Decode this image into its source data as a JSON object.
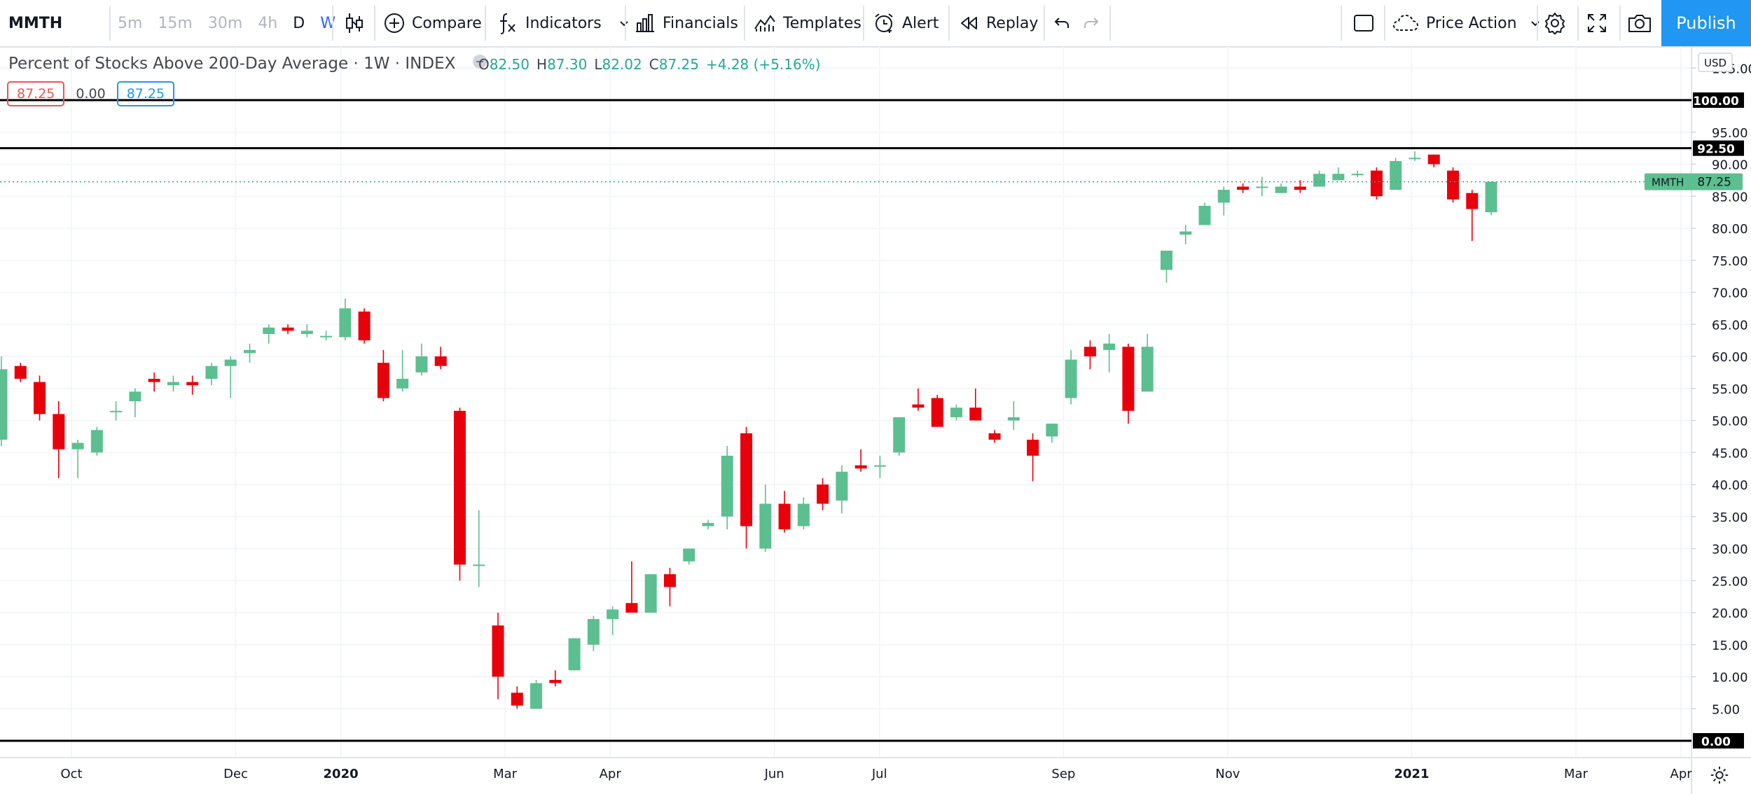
{
  "toolbar": {
    "symbol": "MMTH",
    "intervals": [
      "5m",
      "15m",
      "30m",
      "4h",
      "D",
      "W"
    ],
    "compare": "Compare",
    "indicators": "Indicators",
    "financials": "Financials",
    "templates": "Templates",
    "alert": "Alert",
    "replay": "Replay",
    "layout": "Price Action",
    "publish": "Publish"
  },
  "legend": {
    "title": "Percent of Stocks Above 200-Day Average",
    "interval": "1W",
    "exchange": "INDEX",
    "o_label": "O",
    "o": "82.50",
    "h_label": "H",
    "h": "87.30",
    "l_label": "L",
    "l": "82.02",
    "c_label": "C",
    "c": "87.25",
    "change": "+4.28 (+5.16%)"
  },
  "indicator_legend": {
    "v1": "87.25",
    "v2": "0.00",
    "v3": "87.25"
  },
  "price_scale": {
    "currency": "USD",
    "labels": [
      "105.00",
      "95.00",
      "90.00",
      "85.00",
      "80.00",
      "75.00",
      "70.00",
      "65.00",
      "60.00",
      "55.00",
      "50.00",
      "45.00",
      "40.00",
      "35.00",
      "30.00",
      "25.00",
      "20.00",
      "15.00",
      "10.00",
      "5.00"
    ],
    "hlines": [
      "100.00",
      "92.50",
      "0.00"
    ],
    "last_symbol": "MMTH",
    "last_value": "87.25"
  },
  "time_scale": [
    {
      "label": "Oct",
      "bold": false
    },
    {
      "label": "Dec",
      "bold": false
    },
    {
      "label": "2020",
      "bold": true
    },
    {
      "label": "Mar",
      "bold": false
    },
    {
      "label": "Apr",
      "bold": false
    },
    {
      "label": "Jun",
      "bold": false
    },
    {
      "label": "Jul",
      "bold": false
    },
    {
      "label": "Sep",
      "bold": false
    },
    {
      "label": "Nov",
      "bold": false
    },
    {
      "label": "2021",
      "bold": true
    },
    {
      "label": "Mar",
      "bold": false
    },
    {
      "label": "Apr",
      "bold": false
    }
  ],
  "colors": {
    "up": "#26a69a",
    "up_body": "#5cbf8f",
    "down": "#e8000b",
    "hline": "#000000",
    "accent": "#2196f3"
  },
  "chart_data": {
    "type": "candlestick",
    "ylim": [
      -0.5,
      107.5
    ],
    "hlines": [
      100,
      92.5,
      0
    ],
    "last_price": 87.25,
    "candles": [
      {
        "o": 47,
        "h": 60,
        "l": 46,
        "c": 58
      },
      {
        "o": 58.5,
        "h": 59,
        "l": 56,
        "c": 56.5
      },
      {
        "o": 56,
        "h": 57,
        "l": 50,
        "c": 51
      },
      {
        "o": 51,
        "h": 53,
        "l": 41,
        "c": 45.5
      },
      {
        "o": 45.5,
        "h": 47,
        "l": 41,
        "c": 46.5
      },
      {
        "o": 45,
        "h": 49,
        "l": 44.5,
        "c": 48.5
      },
      {
        "o": 51.5,
        "h": 53,
        "l": 50,
        "c": 51.5
      },
      {
        "o": 53,
        "h": 55,
        "l": 50.5,
        "c": 54.5
      },
      {
        "o": 56.5,
        "h": 57.5,
        "l": 54.5,
        "c": 56
      },
      {
        "o": 55.5,
        "h": 57,
        "l": 54.5,
        "c": 56
      },
      {
        "o": 56,
        "h": 57,
        "l": 54,
        "c": 55.5
      },
      {
        "o": 56.5,
        "h": 59,
        "l": 55.5,
        "c": 58.5
      },
      {
        "o": 58.5,
        "h": 60,
        "l": 53.5,
        "c": 59.5
      },
      {
        "o": 60.5,
        "h": 62,
        "l": 59,
        "c": 61
      },
      {
        "o": 63.5,
        "h": 65,
        "l": 62,
        "c": 64.5
      },
      {
        "o": 64.5,
        "h": 65,
        "l": 63.5,
        "c": 64
      },
      {
        "o": 63.5,
        "h": 65,
        "l": 63,
        "c": 64
      },
      {
        "o": 63,
        "h": 64,
        "l": 62.5,
        "c": 63.2
      },
      {
        "o": 63,
        "h": 69,
        "l": 62.5,
        "c": 67.5
      },
      {
        "o": 67,
        "h": 67.5,
        "l": 62,
        "c": 62.5
      },
      {
        "o": 59,
        "h": 61,
        "l": 53,
        "c": 53.5
      },
      {
        "o": 55,
        "h": 61,
        "l": 54.5,
        "c": 56.5
      },
      {
        "o": 57.5,
        "h": 62,
        "l": 57,
        "c": 60
      },
      {
        "o": 60,
        "h": 61.5,
        "l": 58,
        "c": 58.5
      },
      {
        "o": 51.5,
        "h": 52,
        "l": 25,
        "c": 27.5
      },
      {
        "o": 27.5,
        "h": 36,
        "l": 24,
        "c": 27.5
      },
      {
        "o": 18,
        "h": 20,
        "l": 6.5,
        "c": 10
      },
      {
        "o": 7.5,
        "h": 8.5,
        "l": 5,
        "c": 5.5
      },
      {
        "o": 5,
        "h": 9.5,
        "l": 5,
        "c": 9
      },
      {
        "o": 9.5,
        "h": 11,
        "l": 8.5,
        "c": 9
      },
      {
        "o": 11,
        "h": 16,
        "l": 11,
        "c": 16
      },
      {
        "o": 15,
        "h": 19.5,
        "l": 14,
        "c": 19
      },
      {
        "o": 19,
        "h": 21,
        "l": 16.5,
        "c": 20.5
      },
      {
        "o": 21.5,
        "h": 28,
        "l": 20,
        "c": 20
      },
      {
        "o": 20,
        "h": 26,
        "l": 20,
        "c": 26
      },
      {
        "o": 26,
        "h": 27,
        "l": 21,
        "c": 24
      },
      {
        "o": 28,
        "h": 30,
        "l": 27.5,
        "c": 30
      },
      {
        "o": 33.5,
        "h": 34.5,
        "l": 33,
        "c": 34
      },
      {
        "o": 35,
        "h": 46,
        "l": 33,
        "c": 44.5
      },
      {
        "o": 48,
        "h": 49,
        "l": 30,
        "c": 33.5
      },
      {
        "o": 30,
        "h": 40,
        "l": 29.5,
        "c": 37
      },
      {
        "o": 37,
        "h": 39,
        "l": 32.5,
        "c": 33
      },
      {
        "o": 33.5,
        "h": 38,
        "l": 33,
        "c": 37
      },
      {
        "o": 40,
        "h": 41,
        "l": 36,
        "c": 37
      },
      {
        "o": 37.5,
        "h": 43,
        "l": 35.5,
        "c": 42
      },
      {
        "o": 43,
        "h": 45.5,
        "l": 42,
        "c": 42.5
      },
      {
        "o": 43,
        "h": 44.5,
        "l": 41,
        "c": 43
      },
      {
        "o": 45,
        "h": 50.5,
        "l": 44.5,
        "c": 50.5
      },
      {
        "o": 52.5,
        "h": 55,
        "l": 51.5,
        "c": 52
      },
      {
        "o": 53.5,
        "h": 54,
        "l": 49,
        "c": 49
      },
      {
        "o": 50.5,
        "h": 52.5,
        "l": 50,
        "c": 52
      },
      {
        "o": 52,
        "h": 55,
        "l": 50,
        "c": 50
      },
      {
        "o": 48,
        "h": 48.5,
        "l": 46.5,
        "c": 47
      },
      {
        "o": 50,
        "h": 53,
        "l": 48.5,
        "c": 50.5
      },
      {
        "o": 47,
        "h": 48,
        "l": 40.5,
        "c": 44.5
      },
      {
        "o": 47.5,
        "h": 49.5,
        "l": 46.5,
        "c": 49.5
      },
      {
        "o": 53.5,
        "h": 61,
        "l": 52.5,
        "c": 59.5
      },
      {
        "o": 61.5,
        "h": 62.5,
        "l": 58,
        "c": 60
      },
      {
        "o": 61,
        "h": 63.5,
        "l": 57.5,
        "c": 62
      },
      {
        "o": 61.5,
        "h": 62,
        "l": 49.5,
        "c": 51.5
      },
      {
        "o": 54.5,
        "h": 63.5,
        "l": 54.5,
        "c": 61.5
      },
      {
        "o": 73.5,
        "h": 76,
        "l": 71.5,
        "c": 76.5
      },
      {
        "o": 79,
        "h": 80.5,
        "l": 77.5,
        "c": 79.5
      },
      {
        "o": 80.5,
        "h": 84,
        "l": 80.5,
        "c": 83.5
      },
      {
        "o": 84,
        "h": 86.5,
        "l": 82,
        "c": 86
      },
      {
        "o": 86.5,
        "h": 87,
        "l": 85.5,
        "c": 86
      },
      {
        "o": 86.5,
        "h": 88,
        "l": 85,
        "c": 86.5
      },
      {
        "o": 85.5,
        "h": 87,
        "l": 85.5,
        "c": 86.5
      },
      {
        "o": 86.5,
        "h": 87.5,
        "l": 85.5,
        "c": 86
      },
      {
        "o": 86.5,
        "h": 89,
        "l": 86.5,
        "c": 88.5
      },
      {
        "o": 87.5,
        "h": 89.5,
        "l": 87.5,
        "c": 88.5
      },
      {
        "o": 88.5,
        "h": 89,
        "l": 88,
        "c": 88.5
      },
      {
        "o": 89,
        "h": 89.5,
        "l": 84.5,
        "c": 85
      },
      {
        "o": 86,
        "h": 91,
        "l": 86,
        "c": 90.5
      },
      {
        "o": 91,
        "h": 92,
        "l": 90.5,
        "c": 91
      },
      {
        "o": 91.5,
        "h": 91.5,
        "l": 89.5,
        "c": 90
      },
      {
        "o": 89,
        "h": 89.5,
        "l": 84,
        "c": 84.5
      },
      {
        "o": 85.5,
        "h": 86,
        "l": 78,
        "c": 83
      },
      {
        "o": 82.5,
        "h": 87.3,
        "l": 82.02,
        "c": 87.25
      }
    ]
  }
}
